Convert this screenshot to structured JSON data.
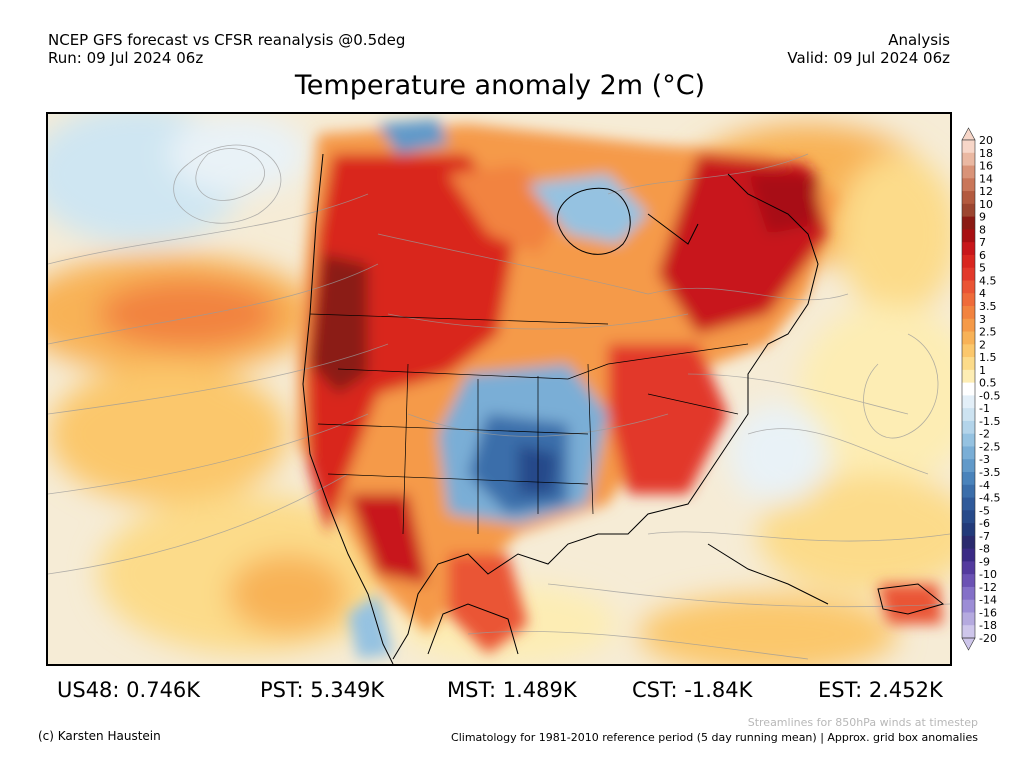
{
  "header": {
    "source_line": "NCEP GFS forecast vs CFSR reanalysis @0.5deg",
    "run_line": "Run: 09 Jul 2024 06z",
    "type_line": "Analysis",
    "valid_line": "Valid: 09 Jul 2024 06z"
  },
  "title": "Temperature anomaly 2m (°C)",
  "colorbar": {
    "labels": [
      "20",
      "18",
      "16",
      "14",
      "12",
      "10",
      "9",
      "8",
      "7",
      "6",
      "5",
      "4.5",
      "4",
      "3.5",
      "3",
      "2.5",
      "2",
      "1.5",
      "1",
      "0.5",
      "-0.5",
      "-1",
      "-1.5",
      "-2",
      "-2.5",
      "-3",
      "-3.5",
      "-4",
      "-4.5",
      "-5",
      "-6",
      "-7",
      "-8",
      "-9",
      "-10",
      "-12",
      "-14",
      "-16",
      "-18",
      "-20"
    ],
    "colors": [
      "#f7d6c8",
      "#eab8a2",
      "#d99378",
      "#c97659",
      "#b35a3f",
      "#9c4530",
      "#8b1a14",
      "#a80f12",
      "#c8161a",
      "#d9261f",
      "#e2382a",
      "#ea5434",
      "#ef6b3a",
      "#f2833f",
      "#f59a48",
      "#f8b257",
      "#fbc76c",
      "#fcdb8a",
      "#fdedb4",
      "#ffffff",
      "#e3eff8",
      "#cde3f1",
      "#b3d4ea",
      "#95c2e1",
      "#7aaed6",
      "#6199c9",
      "#4a83bb",
      "#3b6eaa",
      "#2f5a9a",
      "#274a8a",
      "#223a7a",
      "#2a2a6e",
      "#3a2a85",
      "#533a9e",
      "#6b52b4",
      "#8470c8",
      "#9c8dd6",
      "#b5aadf",
      "#cec6eb"
    ]
  },
  "stats": [
    {
      "label": "US48: 0.746K"
    },
    {
      "label": "PST: 5.349K"
    },
    {
      "label": "MST: 1.489K"
    },
    {
      "label": "CST: -1.84K"
    },
    {
      "label": "EST: 2.452K"
    }
  ],
  "footer": {
    "copyright": "(c) Karsten Haustein",
    "streamlines_note": "Streamlines for 850hPa winds at timestep",
    "climatology_note": "Climatology for 1981-2010 reference period (5 day running mean) | Approx. grid box anomalies"
  }
}
